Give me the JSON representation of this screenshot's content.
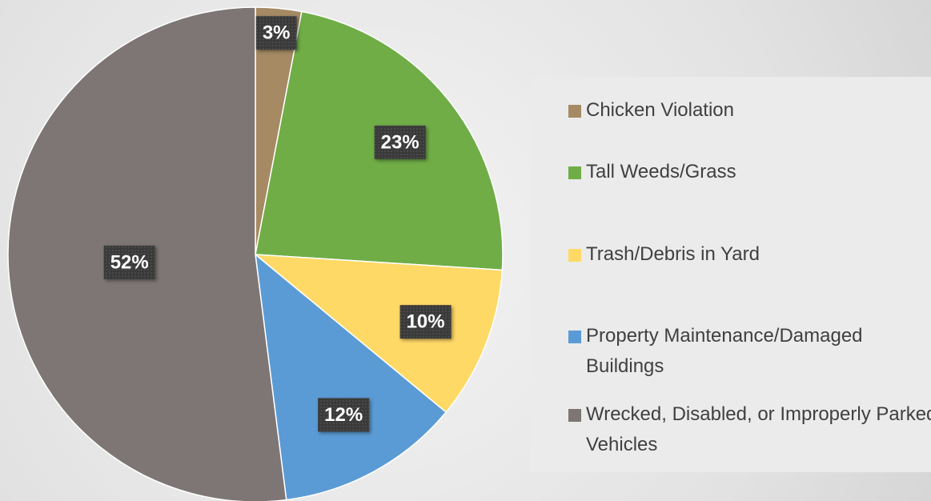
{
  "chart_data": {
    "type": "pie",
    "categories": [
      "Chicken Violation",
      "Tall Weeds/Grass",
      "Trash/Debris in Yard",
      "Property Maintenance/Damaged Buildings",
      "Wrecked, Disabled, or Improperly Parked Vehicles"
    ],
    "values": [
      3,
      23,
      10,
      12,
      52
    ],
    "value_labels": [
      "3%",
      "23%",
      "10%",
      "12%",
      "52%"
    ],
    "colors": [
      "#a58a64",
      "#70ad47",
      "#ffd966",
      "#5b9bd5",
      "#7d7675"
    ],
    "legend": "right"
  }
}
